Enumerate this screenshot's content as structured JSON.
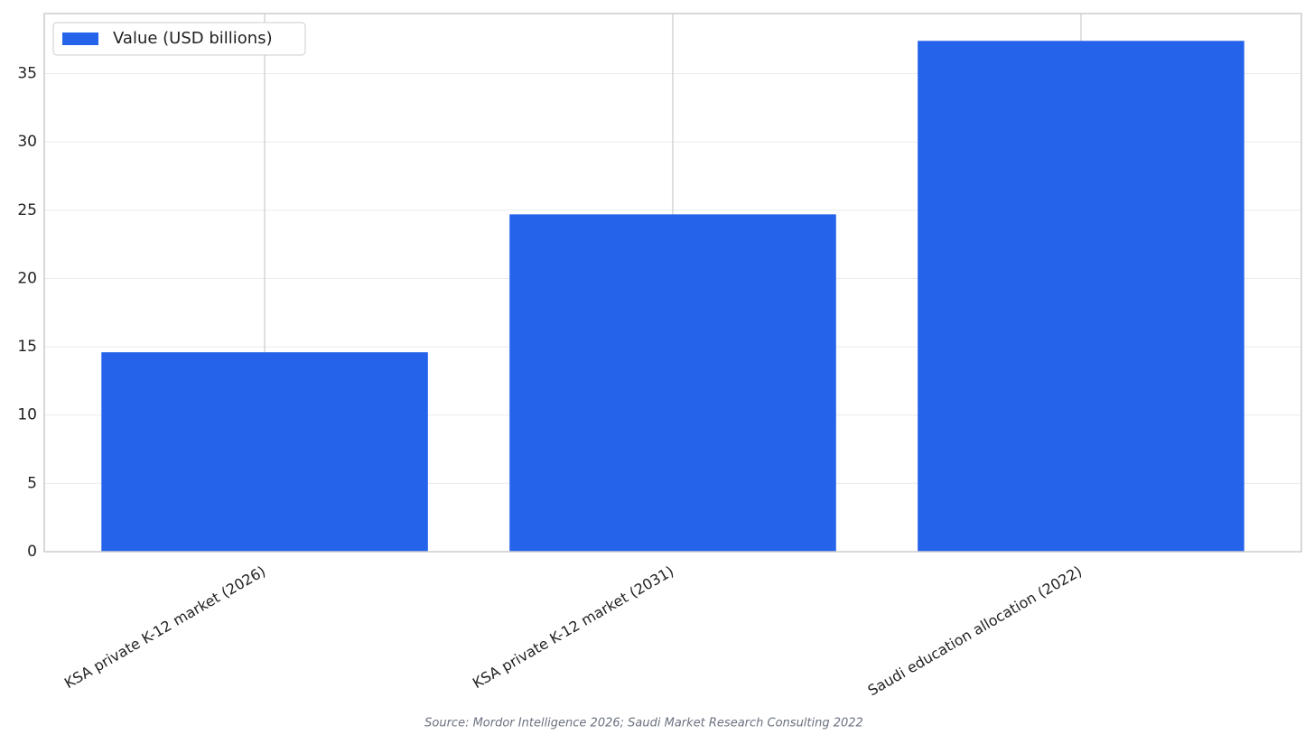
{
  "chart_data": {
    "type": "bar",
    "categories": [
      "KSA private K-12 market (2026)",
      "KSA private K-12 market (2031)",
      "Saudi education allocation (2022)"
    ],
    "series": [
      {
        "name": "Value (USD billions)",
        "color": "#2563eb",
        "values": [
          14.6,
          24.7,
          37.4
        ]
      }
    ],
    "ylim": [
      0,
      39.4
    ],
    "yticks": [
      0,
      5,
      10,
      15,
      20,
      25,
      30,
      35
    ],
    "grid": true,
    "legend": "upper-left",
    "source": "Source: Mordor Intelligence 2026; Saudi Market Research Consulting 2022"
  }
}
